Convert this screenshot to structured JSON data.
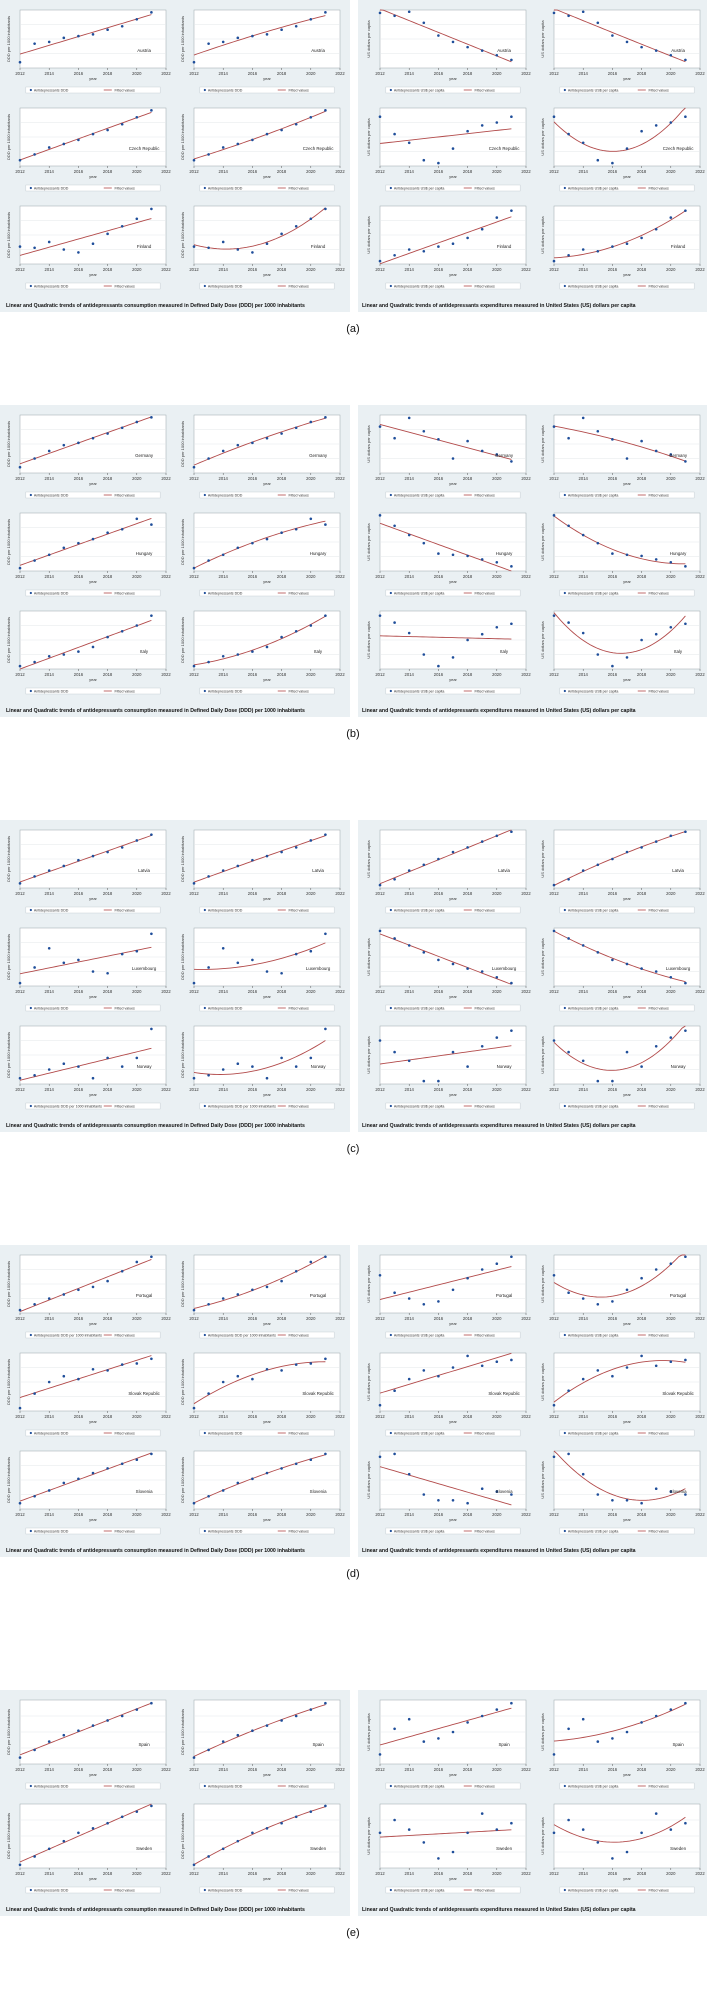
{
  "chart_data": [
    {
      "id": "a",
      "panel_label": "(a)",
      "left_caption": "Linear and Quadratic trends of antidepressants  consumption  measured in Defined Daily Dose (DDD) per 1000 inhabitants",
      "right_caption": "Linear and Quadratic trends of antidepressants  expenditures  measured in United States (US) dollars per capita",
      "rows": [
        {
          "country": "Austria",
          "consumption": {
            "ylabel": "DDD per 1000 inhabitants",
            "legend": [
              "Antidepressants DDD",
              "Fitted values"
            ],
            "y": [
              0.1,
              0.42,
              0.45,
              0.52,
              0.55,
              0.58,
              0.66,
              0.72,
              0.84,
              0.96
            ]
          },
          "expenditure": {
            "ylabel": "US dollars per capita",
            "legend": [
              "Antidepressants US$ per capita",
              "Fitted values"
            ],
            "y": [
              0.95,
              0.9,
              0.97,
              0.78,
              0.56,
              0.45,
              0.36,
              0.3,
              0.22,
              0.14
            ]
          }
        },
        {
          "country": "Czech Republic",
          "consumption": {
            "ylabel": "DDD per 1000 inhabitants",
            "legend": [
              "Antidepressants DDD",
              "Fitted values"
            ],
            "y": [
              0.1,
              0.2,
              0.32,
              0.38,
              0.45,
              0.55,
              0.62,
              0.72,
              0.84,
              0.96
            ]
          },
          "expenditure": {
            "ylabel": "US dollars per capita",
            "legend": [
              "Antidepressants US$ per capita",
              "Fitted values"
            ],
            "y": [
              0.85,
              0.55,
              0.4,
              0.1,
              0.05,
              0.3,
              0.6,
              0.7,
              0.75,
              0.85
            ]
          }
        },
        {
          "country": "Finland",
          "consumption": {
            "ylabel": "DDD per 1000 inhabitants",
            "legend": [
              "Antidepressants DDD",
              "Fitted values"
            ],
            "y": [
              0.3,
              0.28,
              0.38,
              0.25,
              0.2,
              0.35,
              0.52,
              0.65,
              0.78,
              0.95
            ]
          },
          "expenditure": {
            "ylabel": "US dollars per capita",
            "legend": [
              "Antidepressants US$ per capita",
              "Fitted values"
            ],
            "y": [
              0.05,
              0.15,
              0.25,
              0.22,
              0.3,
              0.35,
              0.45,
              0.6,
              0.8,
              0.92
            ]
          }
        }
      ]
    },
    {
      "id": "b",
      "panel_label": "(b)",
      "left_caption": "Linear and Quadratic trends of antidepressants  consumption  measured in Defined Daily Dose (DDD) per 1000 inhabitants",
      "right_caption": "Linear and Quadratic trends of antidepressants  expenditures  measured in United States (US) dollars per capita",
      "rows": [
        {
          "country": "Germany",
          "consumption": {
            "ylabel": "DDD per 1000 inhabitants",
            "legend": [
              "Antidepressants DDD",
              "Fitted values"
            ],
            "y": [
              0.1,
              0.25,
              0.38,
              0.48,
              0.52,
              0.6,
              0.68,
              0.78,
              0.88,
              0.96
            ]
          },
          "expenditure": {
            "ylabel": "US dollars per capita",
            "legend": [
              "Antidepressants US$ per capita",
              "Fitted values"
            ],
            "y": [
              0.8,
              0.6,
              0.95,
              0.72,
              0.58,
              0.25,
              0.55,
              0.38,
              0.32,
              0.2
            ]
          }
        },
        {
          "country": "Hungary",
          "consumption": {
            "ylabel": "DDD per 1000 inhabitants",
            "legend": [
              "Antidepressants DDD",
              "Fitted values"
            ],
            "y": [
              0.05,
              0.18,
              0.28,
              0.4,
              0.48,
              0.55,
              0.66,
              0.72,
              0.9,
              0.8
            ]
          },
          "expenditure": {
            "ylabel": "US dollars per capita",
            "legend": [
              "Antidepressants US$ per capita",
              "Fitted values"
            ],
            "y": [
              0.96,
              0.78,
              0.62,
              0.48,
              0.3,
              0.28,
              0.26,
              0.2,
              0.15,
              0.08
            ]
          }
        },
        {
          "country": "Italy",
          "consumption": {
            "ylabel": "DDD per 1000 inhabitants",
            "legend": [
              "Antidepressants DDD",
              "Fitted values"
            ],
            "y": [
              0.05,
              0.12,
              0.22,
              0.25,
              0.3,
              0.38,
              0.55,
              0.65,
              0.75,
              0.92
            ]
          },
          "expenditure": {
            "ylabel": "US dollars per capita",
            "legend": [
              "Antidepressants US$ per capita",
              "Fitted values"
            ],
            "y": [
              0.92,
              0.8,
              0.62,
              0.25,
              0.05,
              0.2,
              0.5,
              0.6,
              0.72,
              0.78
            ]
          }
        }
      ]
    },
    {
      "id": "c",
      "panel_label": "(c)",
      "left_caption": "Linear and Quadratic trends of antidepressants  consumption  measured in Defined Daily Dose (DDD) per 1000 inhabitants",
      "right_caption": "Linear and Quadratic trends of antidepressants  expenditures  measured in United States (US) dollars per capita",
      "rows": [
        {
          "country": "Latvia",
          "consumption": {
            "ylabel": "DDD per 1000 inhabitants",
            "legend": [
              "Antidepressants DDD",
              "Fitted values"
            ],
            "y": [
              0.08,
              0.2,
              0.3,
              0.38,
              0.48,
              0.55,
              0.62,
              0.7,
              0.82,
              0.92
            ]
          },
          "expenditure": {
            "ylabel": "US dollars per capita",
            "legend": [
              "Antidepressants US$ per capita",
              "Fitted values"
            ],
            "y": [
              0.05,
              0.15,
              0.3,
              0.4,
              0.5,
              0.62,
              0.7,
              0.8,
              0.9,
              0.97
            ]
          }
        },
        {
          "country": "Luxembourg",
          "consumption": {
            "ylabel": "DDD per 1000 inhabitants",
            "legend": [
              "Antidepressants DDD",
              "Fitted values"
            ],
            "y": [
              0.05,
              0.32,
              0.65,
              0.4,
              0.45,
              0.25,
              0.22,
              0.55,
              0.6,
              0.9
            ]
          },
          "expenditure": {
            "ylabel": "US dollars per capita",
            "legend": [
              "Antidepressants US$ per capita",
              "Fitted values"
            ],
            "y": [
              0.95,
              0.82,
              0.7,
              0.58,
              0.45,
              0.38,
              0.3,
              0.25,
              0.15,
              0.05
            ]
          }
        },
        {
          "country": "Norway",
          "consumption": {
            "ylabel": "DDD per 1000 inhabitants",
            "legend": [
              "Antidepressants DDD per 1000 inhabitants",
              "Fitted values"
            ],
            "y": [
              0.1,
              0.15,
              0.25,
              0.35,
              0.3,
              0.1,
              0.45,
              0.3,
              0.45,
              0.95
            ]
          },
          "expenditure": {
            "ylabel": "US dollars per capita",
            "legend": [
              "Antidepressants US$ per capita",
              "Fitted values"
            ],
            "y": [
              0.75,
              0.55,
              0.4,
              0.05,
              0.05,
              0.55,
              0.3,
              0.65,
              0.8,
              0.92
            ]
          }
        }
      ]
    },
    {
      "id": "d",
      "panel_label": "(d)",
      "left_caption": "Linear and Quadratic trends of antidepressants  consumption  measured in Defined Daily Dose (DDD) per 1000 inhabitants",
      "right_caption": "Linear and Quadratic trends of antidepressants  expenditures  measured in United States (US) dollars per capita",
      "rows": [
        {
          "country": "Portugal",
          "consumption": {
            "ylabel": "DDD per 1000 inhabitants",
            "legend": [
              "Antidepressants DDD per 1000 inhabitants",
              "Fitted values"
            ],
            "y": [
              0.05,
              0.15,
              0.25,
              0.32,
              0.4,
              0.45,
              0.55,
              0.72,
              0.88,
              0.97
            ]
          },
          "expenditure": {
            "ylabel": "US dollars per capita",
            "legend": [
              "Antidepressants US$ per capita",
              "Fitted values"
            ],
            "y": [
              0.65,
              0.35,
              0.25,
              0.15,
              0.2,
              0.4,
              0.6,
              0.75,
              0.85,
              0.97
            ]
          }
        },
        {
          "country": "Slovak Republic",
          "consumption": {
            "ylabel": "DDD per 1000 inhabitants",
            "legend": [
              "Antidepressants DDD",
              "Fitted values"
            ],
            "y": [
              0.05,
              0.3,
              0.5,
              0.6,
              0.55,
              0.72,
              0.7,
              0.8,
              0.82,
              0.9
            ]
          },
          "expenditure": {
            "ylabel": "US dollars per capita",
            "legend": [
              "Antidepressants US$ per capita",
              "Fitted values"
            ],
            "y": [
              0.1,
              0.35,
              0.55,
              0.7,
              0.6,
              0.75,
              0.95,
              0.78,
              0.85,
              0.88
            ]
          }
        },
        {
          "country": "Slovenia",
          "consumption": {
            "ylabel": "DDD per 1000 inhabitants",
            "legend": [
              "Antidepressants DDD",
              "Fitted values"
            ],
            "y": [
              0.1,
              0.22,
              0.32,
              0.45,
              0.52,
              0.62,
              0.7,
              0.78,
              0.85,
              0.95
            ]
          },
          "expenditure": {
            "ylabel": "US dollars per capita",
            "legend": [
              "Antidepressants US$ per capita",
              "Fitted values"
            ],
            "y": [
              0.9,
              0.95,
              0.6,
              0.25,
              0.15,
              0.15,
              0.1,
              0.35,
              0.3,
              0.25
            ]
          }
        }
      ]
    },
    {
      "id": "e",
      "panel_label": "(e)",
      "left_caption": "Linear and Quadratic trends of antidepressants  consumption  measured in Defined Daily Dose (DDD) per 1000 inhabitants",
      "right_caption": "Linear and Quadratic trends of antidepressants  expenditures  measured in United States (US) dollars per capita",
      "rows": [
        {
          "country": "Spain",
          "consumption": {
            "ylabel": "DDD per 1000 inhabitants",
            "legend": [
              "Antidepressants DDD",
              "Fitted values"
            ],
            "y": [
              0.1,
              0.22,
              0.35,
              0.45,
              0.52,
              0.6,
              0.68,
              0.75,
              0.85,
              0.95
            ]
          },
          "expenditure": {
            "ylabel": "US dollars per capita",
            "legend": [
              "Antidepressants US$ per capita",
              "Fitted values"
            ],
            "y": [
              0.15,
              0.55,
              0.7,
              0.35,
              0.4,
              0.5,
              0.65,
              0.75,
              0.85,
              0.95
            ]
          }
        },
        {
          "country": "Sweden",
          "consumption": {
            "ylabel": "DDD per 1000 inhabitants",
            "legend": [
              "Antidepressants DDD",
              "Fitted values"
            ],
            "y": [
              0.05,
              0.18,
              0.3,
              0.42,
              0.55,
              0.62,
              0.7,
              0.8,
              0.88,
              0.97
            ]
          },
          "expenditure": {
            "ylabel": "US dollars per capita",
            "legend": [
              "Antidepressants US$ per capita",
              "Fitted values"
            ],
            "y": [
              0.55,
              0.75,
              0.6,
              0.4,
              0.15,
              0.25,
              0.55,
              0.85,
              0.6,
              0.7
            ]
          }
        }
      ]
    }
  ],
  "axes": {
    "x": [
      2012,
      2013,
      2014,
      2015,
      2016,
      2017,
      2018,
      2019,
      2020,
      2021
    ],
    "xlabel": "year",
    "xticks": [
      2012,
      2014,
      2016,
      2018,
      2020,
      2022
    ],
    "xlim": [
      2012,
      2022
    ],
    "ylim": [
      0,
      1
    ],
    "grid": true,
    "legend_placement": "bottom",
    "point_color": "#1f4e9a",
    "line_color": "#b24a4a",
    "bg_color": "#eaf0f3"
  }
}
